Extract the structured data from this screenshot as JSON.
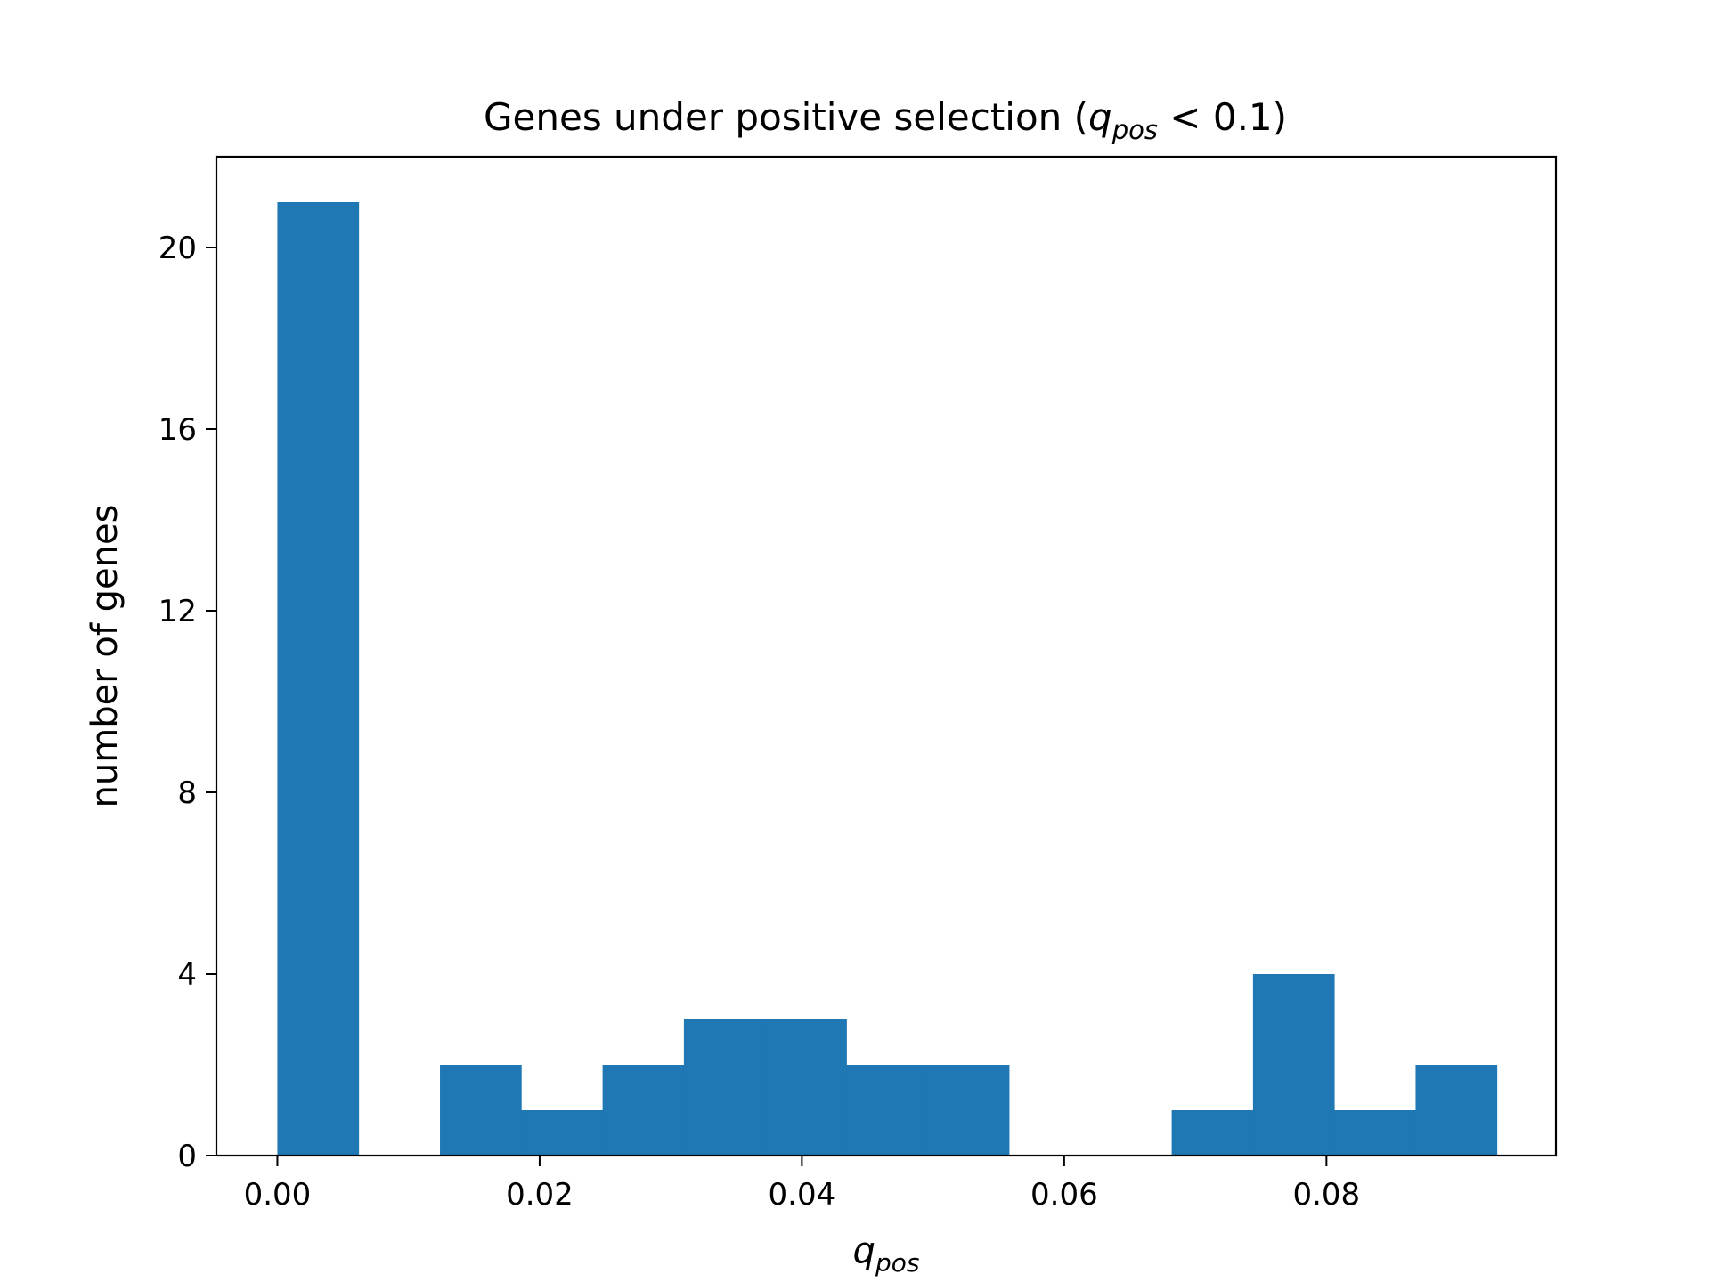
{
  "chart_data": {
    "type": "bar",
    "title": {
      "prefix": "Genes under positive selection (",
      "symbol": "q",
      "subscript": "pos",
      "suffix": " < 0.1)"
    },
    "xlabel": {
      "symbol": "q",
      "subscript": "pos"
    },
    "ylabel": "number of genes",
    "xlim": [
      -0.00465,
      0.0975
    ],
    "ylim": [
      0,
      22
    ],
    "xticks": [
      0.0,
      0.02,
      0.04,
      0.06,
      0.08
    ],
    "xtick_labels": [
      "0.00",
      "0.02",
      "0.04",
      "0.06",
      "0.08"
    ],
    "yticks": [
      0,
      4,
      8,
      12,
      16,
      20
    ],
    "ytick_labels": [
      "0",
      "4",
      "8",
      "12",
      "16",
      "20"
    ],
    "bar_color": "#1f77b4",
    "grid": false,
    "bins": [
      {
        "x0": 0.0,
        "x1": 0.0062,
        "count": 21
      },
      {
        "x0": 0.0062,
        "x1": 0.0124,
        "count": 0
      },
      {
        "x0": 0.0124,
        "x1": 0.0186,
        "count": 2
      },
      {
        "x0": 0.0186,
        "x1": 0.0248,
        "count": 1
      },
      {
        "x0": 0.0248,
        "x1": 0.031,
        "count": 2
      },
      {
        "x0": 0.031,
        "x1": 0.0372,
        "count": 3
      },
      {
        "x0": 0.0372,
        "x1": 0.0434,
        "count": 3
      },
      {
        "x0": 0.0434,
        "x1": 0.0496,
        "count": 2
      },
      {
        "x0": 0.0496,
        "x1": 0.0558,
        "count": 2
      },
      {
        "x0": 0.0558,
        "x1": 0.062,
        "count": 0
      },
      {
        "x0": 0.062,
        "x1": 0.0682,
        "count": 0
      },
      {
        "x0": 0.0682,
        "x1": 0.0744,
        "count": 1
      },
      {
        "x0": 0.0744,
        "x1": 0.0806,
        "count": 4
      },
      {
        "x0": 0.0806,
        "x1": 0.0868,
        "count": 1
      },
      {
        "x0": 0.0868,
        "x1": 0.093,
        "count": 2
      }
    ]
  }
}
